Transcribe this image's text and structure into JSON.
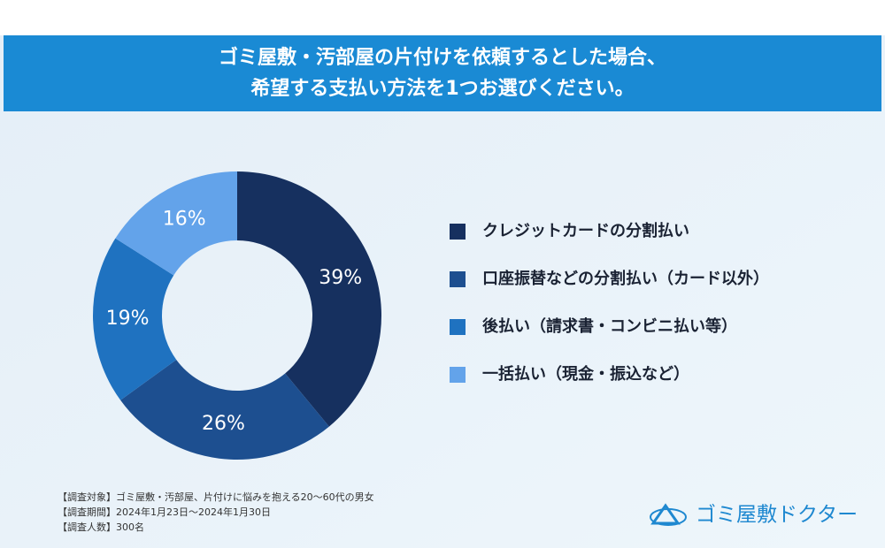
{
  "chart_data": {
    "type": "donut",
    "title_lines": [
      "ゴミ屋敷・汚部屋の片付けを依頼するとした場合、",
      "希望する支払い方法を1つお選びください。"
    ],
    "series": [
      {
        "name": "クレジットカードの分割払い",
        "color": "#16305f",
        "values": [
          39
        ],
        "value_labels": [
          "39%"
        ]
      },
      {
        "name": "口座振替などの分割払い（カード以外）",
        "color": "#1d4f90",
        "values": [
          26
        ],
        "value_labels": [
          "26%"
        ]
      },
      {
        "name": "後払い（請求書・コンビニ払い等）",
        "color": "#1f72c0",
        "values": [
          19
        ],
        "value_labels": [
          "19%"
        ]
      },
      {
        "name": "一括払い（現金・振込など）",
        "color": "#63a3ea",
        "values": [
          16
        ],
        "value_labels": [
          "16%"
        ]
      }
    ],
    "legend": "right"
  },
  "notes": [
    "【調査対象】ゴミ屋敷・汚部屋、片付けに悩みを抱える20〜60代の男女",
    "【調査期間】2024年1月23日〜2024年1月30日",
    "【調査人数】300名"
  ],
  "logo": "ゴミ屋敷ドクター"
}
